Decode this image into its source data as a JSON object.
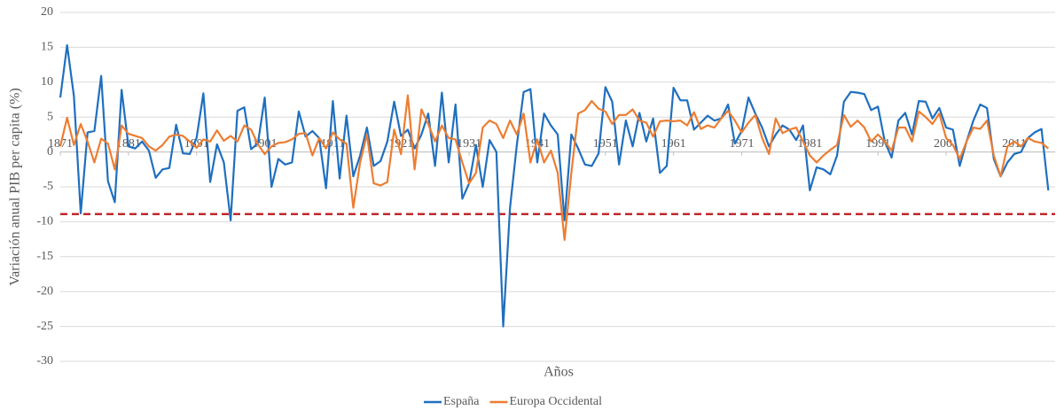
{
  "chart_data": {
    "type": "line",
    "ylabel": "Variación anual PIB per capita (%)",
    "xlabel": "Años",
    "x": [
      1871,
      1872,
      1873,
      1874,
      1875,
      1876,
      1877,
      1878,
      1879,
      1880,
      1881,
      1882,
      1883,
      1884,
      1885,
      1886,
      1887,
      1888,
      1889,
      1890,
      1891,
      1892,
      1893,
      1894,
      1895,
      1896,
      1897,
      1898,
      1899,
      1900,
      1901,
      1902,
      1903,
      1904,
      1905,
      1906,
      1907,
      1908,
      1909,
      1910,
      1911,
      1912,
      1913,
      1914,
      1915,
      1916,
      1917,
      1918,
      1919,
      1920,
      1921,
      1922,
      1923,
      1924,
      1925,
      1926,
      1927,
      1928,
      1929,
      1930,
      1931,
      1932,
      1933,
      1934,
      1935,
      1936,
      1937,
      1938,
      1939,
      1940,
      1941,
      1942,
      1943,
      1944,
      1945,
      1946,
      1947,
      1948,
      1949,
      1950,
      1951,
      1952,
      1953,
      1954,
      1955,
      1956,
      1957,
      1958,
      1959,
      1960,
      1961,
      1962,
      1963,
      1964,
      1965,
      1966,
      1967,
      1968,
      1969,
      1970,
      1971,
      1972,
      1973,
      1974,
      1975,
      1976,
      1977,
      1978,
      1979,
      1980,
      1981,
      1982,
      1983,
      1984,
      1985,
      1986,
      1987,
      1988,
      1989,
      1990,
      1991,
      1992,
      1993,
      1994,
      1995,
      1996,
      1997,
      1998,
      1999,
      2000,
      2001,
      2002,
      2003,
      2004,
      2005,
      2006,
      2007,
      2008,
      2009,
      2010,
      2011,
      2012,
      2013,
      2014,
      2015,
      2016
    ],
    "series": [
      {
        "name": "España",
        "color": "#1f6fbf",
        "values": [
          7.8,
          15.3,
          8,
          -8.8,
          2.8,
          3,
          10.9,
          -4.2,
          -7.2,
          8.9,
          0.8,
          0.5,
          1.5,
          0.2,
          -3.7,
          -2.5,
          -2.3,
          3.9,
          -0.2,
          -0.3,
          2,
          8.4,
          -4.3,
          1.1,
          -1.5,
          -9.8,
          5.9,
          6.4,
          0.4,
          1.2,
          7.8,
          -5,
          -1,
          -1.8,
          -1.5,
          5.8,
          2.2,
          3,
          2,
          -5.2,
          7.3,
          -3.8,
          5.2,
          -3.5,
          -0.5,
          3.5,
          -2,
          -1.3,
          1.5,
          7.2,
          2.3,
          3.2,
          0.5,
          2.5,
          5.5,
          -2,
          8.5,
          -1.5,
          6.8,
          -6.7,
          -4.5,
          1,
          -5,
          1.7,
          0,
          -25,
          -8,
          1,
          8.6,
          9,
          -1.5,
          5.5,
          3.8,
          2.5,
          -9.8,
          2.5,
          0.5,
          -1.8,
          -2,
          -0.2,
          9.3,
          7.2,
          -1.8,
          4.5,
          0.8,
          5.6,
          1.5,
          4.8,
          -3,
          -2,
          9.2,
          7.4,
          7.4,
          3.2,
          4.2,
          5.2,
          4.5,
          4.8,
          6.8,
          1.2,
          3,
          7.8,
          5.5,
          3.5,
          0.8,
          2.5,
          3.8,
          3.2,
          1.7,
          3.8,
          -5.5,
          -2.2,
          -2.5,
          -3.2,
          -0.5,
          7.2,
          8.6,
          8.5,
          8.3,
          6,
          6.5,
          1.5,
          -0.8,
          4.5,
          5.6,
          2.5,
          7.3,
          7.2,
          4.8,
          6.3,
          3.5,
          3.2,
          -2,
          1.5,
          4.5,
          6.8,
          6.3,
          -1,
          -3.5,
          -1.5,
          -0.3,
          0,
          2,
          2.8,
          3.3,
          -5.5
        ]
      },
      {
        "name": "Europa Occidental",
        "color": "#ed7d31",
        "values": [
          0.8,
          4.9,
          1,
          4,
          1.5,
          -1.5,
          1.9,
          1.2,
          -2.5,
          3.8,
          2.6,
          2.3,
          2,
          0.8,
          0.2,
          1,
          2.2,
          2.5,
          2.3,
          1.5,
          0.6,
          1.8,
          1.5,
          3.1,
          1.6,
          2.3,
          1.5,
          3.8,
          3.2,
          1.1,
          -0.3,
          0.8,
          1.3,
          1.4,
          1.8,
          2.6,
          2.7,
          -0.5,
          2,
          0.5,
          2.8,
          1.8,
          1.2,
          -8,
          -1.5,
          2.5,
          -4.5,
          -4.8,
          -4.3,
          3.2,
          -0.3,
          8.1,
          -2.5,
          6.1,
          4,
          1.5,
          3.8,
          2,
          1.8,
          -1.5,
          -4.5,
          -3,
          3.5,
          4.5,
          4,
          2,
          4.5,
          2.5,
          5.5,
          -1.5,
          1.8,
          -1.5,
          0.2,
          -3,
          -12.6,
          -3,
          5.5,
          6,
          7.3,
          6.2,
          5.8,
          4,
          5.3,
          5.3,
          6.1,
          4.5,
          4.2,
          2.2,
          4.4,
          4.5,
          4.4,
          4.5,
          3.8,
          5.7,
          3.3,
          3.8,
          3.5,
          4.8,
          5.9,
          4.5,
          2.8,
          4.2,
          5.3,
          2,
          -0.3,
          4.8,
          2.7,
          3.2,
          3.5,
          1.5,
          -0.5,
          -1.5,
          -0.5,
          0.3,
          1,
          5.3,
          3.6,
          4.5,
          3.5,
          1.5,
          2.5,
          1.5,
          0.2,
          3.5,
          3.5,
          1.5,
          5.8,
          5,
          4,
          5.5,
          2,
          1,
          -1,
          1.5,
          3.5,
          3.3,
          4.5,
          -0.5,
          -3.5,
          0.8,
          1.5,
          0.8,
          2,
          1.5,
          1.3,
          0.5
        ]
      }
    ],
    "xlim": [
      1871,
      2017
    ],
    "xticks": [
      1871,
      1881,
      1891,
      1901,
      1911,
      1921,
      1931,
      1941,
      1951,
      1961,
      1971,
      1981,
      1991,
      2001,
      2011
    ],
    "ylim": [
      -30,
      20
    ],
    "yticks": [
      -30,
      -25,
      -20,
      -15,
      -10,
      -5,
      0,
      5,
      10,
      15,
      20
    ],
    "grid": true,
    "reference_line": {
      "value": -8.9,
      "color": "#c0282d"
    },
    "legend": "bottom"
  }
}
